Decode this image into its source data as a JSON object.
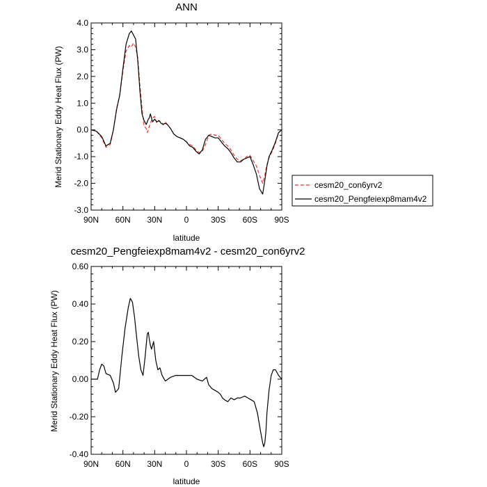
{
  "chart_data": [
    {
      "type": "line",
      "title": "ANN",
      "xlabel": "latitude",
      "ylabel": "Merid Stationary Eddy Heat Flux (PW)",
      "xlim": [
        90,
        -90
      ],
      "ylim": [
        -3.0,
        4.0
      ],
      "xticks": [
        90,
        60,
        30,
        0,
        -30,
        -60,
        -90
      ],
      "xtick_labels": [
        "90N",
        "60N",
        "30N",
        "0",
        "30S",
        "60S",
        "90S"
      ],
      "yticks": [
        -3,
        -2,
        -1,
        0,
        1,
        2,
        3,
        4
      ],
      "ytick_labels": [
        "-3.0",
        "-2.0",
        "-1.0",
        "0.0",
        "1.0",
        "2.0",
        "3.0",
        "4.0"
      ],
      "legend_position": "right",
      "series": [
        {
          "name": "cesm20_con6yrv2",
          "color": "#e8352b",
          "dash": "dashed",
          "x": [
            90,
            85,
            80,
            76,
            72,
            69,
            66,
            63,
            60,
            57,
            54,
            52,
            50,
            48,
            46,
            44,
            42,
            40,
            38,
            37,
            36,
            35,
            34,
            32,
            30,
            28,
            26,
            24,
            22,
            20,
            18,
            15,
            12,
            9,
            6,
            3,
            0,
            -3,
            -6,
            -9,
            -12,
            -15,
            -18,
            -21,
            -24,
            -27,
            -30,
            -33,
            -36,
            -39,
            -42,
            -45,
            -48,
            -51,
            -54,
            -57,
            -60,
            -63,
            -66,
            -69,
            -72,
            -74,
            -76,
            -78,
            -81,
            -84,
            -87,
            -90
          ],
          "y": [
            0.0,
            -0.05,
            -0.3,
            -0.65,
            -0.55,
            0.0,
            0.8,
            1.3,
            2.2,
            2.95,
            3.15,
            3.1,
            3.25,
            3.1,
            2.7,
            1.7,
            0.8,
            0.15,
            0.05,
            -0.1,
            0.0,
            0.15,
            0.25,
            0.45,
            0.5,
            0.25,
            0.35,
            0.3,
            0.2,
            0.3,
            0.2,
            0.05,
            -0.15,
            -0.25,
            -0.3,
            -0.35,
            -0.45,
            -0.55,
            -0.6,
            -0.75,
            -0.85,
            -0.8,
            -0.55,
            -0.2,
            -0.15,
            -0.2,
            -0.2,
            -0.35,
            -0.5,
            -0.6,
            -0.75,
            -0.95,
            -1.1,
            -1.15,
            -1.1,
            -1.0,
            -0.95,
            -1.15,
            -1.35,
            -1.7,
            -2.0,
            -1.7,
            -1.3,
            -1.05,
            -0.8,
            -0.5,
            -0.1,
            0.0
          ]
        },
        {
          "name": "cesm20_Pengfeiexp8mam4v2",
          "color": "#000000",
          "dash": "solid",
          "x": [
            90,
            85,
            80,
            76,
            72,
            69,
            66,
            63,
            60,
            57,
            54,
            52,
            50,
            48,
            46,
            44,
            42,
            40,
            38,
            37,
            36,
            35,
            34,
            32,
            30,
            28,
            26,
            24,
            22,
            20,
            18,
            15,
            12,
            9,
            6,
            3,
            0,
            -3,
            -6,
            -9,
            -12,
            -15,
            -18,
            -21,
            -24,
            -27,
            -30,
            -33,
            -36,
            -39,
            -42,
            -45,
            -48,
            -51,
            -54,
            -57,
            -60,
            -63,
            -66,
            -69,
            -72,
            -74,
            -76,
            -78,
            -81,
            -84,
            -87,
            -90
          ],
          "y": [
            0.0,
            -0.05,
            -0.25,
            -0.6,
            -0.5,
            0.0,
            0.75,
            1.3,
            2.3,
            3.2,
            3.6,
            3.7,
            3.55,
            3.4,
            2.6,
            1.5,
            0.6,
            0.35,
            0.2,
            0.3,
            0.4,
            0.45,
            0.6,
            0.3,
            0.4,
            0.3,
            0.35,
            0.25,
            0.2,
            0.25,
            0.2,
            0.05,
            -0.15,
            -0.25,
            -0.3,
            -0.35,
            -0.45,
            -0.6,
            -0.65,
            -0.8,
            -0.9,
            -0.75,
            -0.35,
            -0.2,
            -0.25,
            -0.3,
            -0.3,
            -0.45,
            -0.6,
            -0.7,
            -0.85,
            -1.05,
            -1.2,
            -1.2,
            -1.1,
            -1.05,
            -1.0,
            -1.3,
            -1.65,
            -2.2,
            -2.4,
            -1.9,
            -1.35,
            -1.0,
            -0.75,
            -0.45,
            -0.1,
            0.0
          ]
        }
      ]
    },
    {
      "type": "line",
      "title": "cesm20_Pengfeiexp8mam4v2 - cesm20_con6yrv2",
      "xlabel": "latitude",
      "ylabel": "Merid Stationary Eddy Heat Flux (PW)",
      "xlim": [
        90,
        -90
      ],
      "ylim": [
        -0.4,
        0.6
      ],
      "xticks": [
        90,
        60,
        30,
        0,
        -30,
        -60,
        -90
      ],
      "xtick_labels": [
        "90N",
        "60N",
        "30N",
        "0",
        "30S",
        "60S",
        "90S"
      ],
      "yticks": [
        -0.4,
        -0.2,
        0.0,
        0.2,
        0.4,
        0.6
      ],
      "ytick_labels": [
        "-0.40",
        "-0.20",
        "0.00",
        "0.20",
        "0.40",
        "0.60"
      ],
      "series": [
        {
          "color": "#000000",
          "dash": "solid",
          "x": [
            90,
            84,
            82,
            80,
            78,
            76,
            72,
            69,
            67,
            64,
            61,
            58,
            55,
            53,
            51,
            49,
            47,
            45,
            43,
            41,
            39,
            37,
            36,
            35,
            34,
            33,
            32,
            31,
            29,
            27,
            25,
            23,
            20,
            15,
            10,
            5,
            0,
            -5,
            -10,
            -15,
            -17,
            -19,
            -21,
            -24,
            -27,
            -30,
            -32,
            -34,
            -36,
            -39,
            -42,
            -45,
            -48,
            -51,
            -55,
            -58,
            -61,
            -64,
            -67,
            -70,
            -72,
            -73,
            -74,
            -75,
            -76,
            -78,
            -80,
            -82,
            -84,
            -87,
            -90
          ],
          "y": [
            0.0,
            0.0,
            0.05,
            0.08,
            0.07,
            0.03,
            0.02,
            -0.02,
            -0.07,
            -0.05,
            0.12,
            0.27,
            0.38,
            0.43,
            0.41,
            0.33,
            0.22,
            0.12,
            0.05,
            0.02,
            0.12,
            0.24,
            0.25,
            0.21,
            0.18,
            0.16,
            0.18,
            0.2,
            0.1,
            0.05,
            0.06,
            0.02,
            -0.01,
            0.01,
            0.02,
            0.02,
            0.02,
            0.02,
            0.0,
            -0.01,
            0.0,
            0.01,
            -0.03,
            -0.05,
            -0.06,
            -0.07,
            -0.08,
            -0.1,
            -0.11,
            -0.12,
            -0.1,
            -0.11,
            -0.1,
            -0.1,
            -0.09,
            -0.1,
            -0.11,
            -0.12,
            -0.18,
            -0.28,
            -0.34,
            -0.36,
            -0.34,
            -0.28,
            -0.18,
            -0.06,
            0.02,
            0.05,
            0.05,
            0.02,
            0.0
          ]
        }
      ]
    }
  ]
}
